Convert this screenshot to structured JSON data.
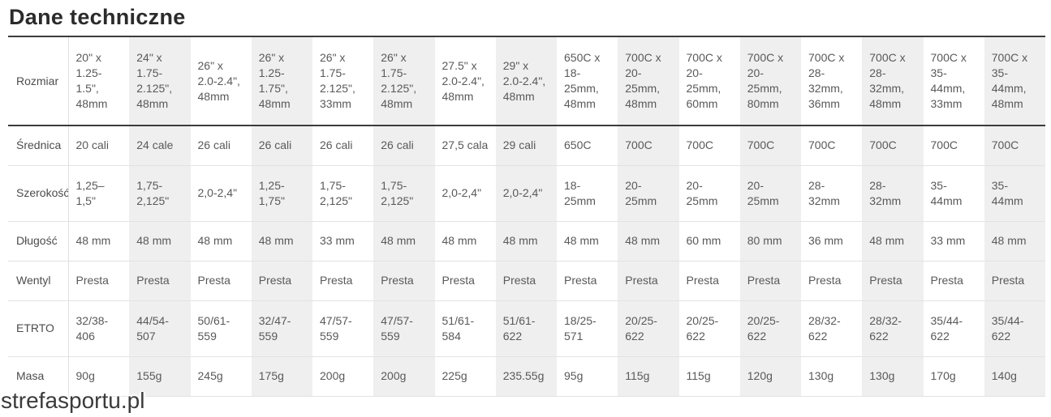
{
  "page": {
    "title": "Dane techniczne",
    "watermark": "strefasportu.pl"
  },
  "colors": {
    "dark_rule": "#3c3c3c",
    "light_rule": "#e3e3e3",
    "striped_column_bg": "#efefef",
    "cell_text": "#595959",
    "title_text": "#2b2b2b"
  },
  "chart_data": {
    "type": "table",
    "title": "Dane techniczne",
    "layout": {
      "striped_columns": "even data columns",
      "label_column_first": true
    },
    "row_labels": [
      "Rozmiar",
      "Średnica",
      "Szerokość",
      "Długość",
      "Wentyl",
      "ETRTO",
      "Masa"
    ],
    "rows": [
      {
        "label": "Rozmiar",
        "values": [
          "20\" x 1.25-1.5\", 48mm",
          "24\" x 1.75-2.125\", 48mm",
          "26\" x 2.0-2.4\", 48mm",
          "26\" x 1.25-1.75\", 48mm",
          "26\" x 1.75-2.125\", 33mm",
          "26\" x 1.75-2.125\", 48mm",
          "27.5\" x 2.0-2.4\", 48mm",
          "29\" x 2.0-2.4\", 48mm",
          "650C x 18-25mm, 48mm",
          "700C x 20-25mm, 48mm",
          "700C x 20-25mm, 60mm",
          "700C x 20-25mm, 80mm",
          "700C x 28-32mm, 36mm",
          "700C x 28-32mm, 48mm",
          "700C x 35-44mm, 33mm",
          "700C x 35-44mm, 48mm"
        ]
      },
      {
        "label": "Średnica",
        "values": [
          "20 cali",
          "24 cale",
          "26 cali",
          "26 cali",
          "26 cali",
          "26 cali",
          "27,5 cala",
          "29 cali",
          "650C",
          "700C",
          "700C",
          "700C",
          "700C",
          "700C",
          "700C",
          "700C"
        ]
      },
      {
        "label": "Szerokość",
        "values": [
          "1,25–1,5\"",
          "1,75-2,125\"",
          "2,0-2,4\"",
          "1,25-1,75\"",
          "1,75-2,125\"",
          "1,75-2,125\"",
          "2,0-2,4\"",
          "2,0-2,4\"",
          "18-25mm",
          "20-25mm",
          "20-25mm",
          "20-25mm",
          "28-32mm",
          "28-32mm",
          "35-44mm",
          "35-44mm"
        ]
      },
      {
        "label": "Długość",
        "values": [
          "48 mm",
          "48 mm",
          "48 mm",
          "48 mm",
          "33 mm",
          "48 mm",
          "48 mm",
          "48 mm",
          "48 mm",
          "48 mm",
          "60 mm",
          "80 mm",
          "36 mm",
          "48 mm",
          "33 mm",
          "48 mm"
        ]
      },
      {
        "label": "Wentyl",
        "values": [
          "Presta",
          "Presta",
          "Presta",
          "Presta",
          "Presta",
          "Presta",
          "Presta",
          "Presta",
          "Presta",
          "Presta",
          "Presta",
          "Presta",
          "Presta",
          "Presta",
          "Presta",
          "Presta"
        ]
      },
      {
        "label": "ETRTO",
        "values": [
          "32/38-406",
          "44/54-507",
          "50/61-559",
          "32/47-559",
          "47/57-559",
          "47/57-559",
          "51/61-584",
          "51/61-622",
          "18/25-571",
          "20/25-622",
          "20/25-622",
          "20/25-622",
          "28/32-622",
          "28/32-622",
          "35/44-622",
          "35/44-622"
        ]
      },
      {
        "label": "Masa",
        "values": [
          "90g",
          "155g",
          "245g",
          "175g",
          "200g",
          "200g",
          "225g",
          "235.55g",
          "95g",
          "115g",
          "115g",
          "120g",
          "130g",
          "130g",
          "170g",
          "140g"
        ]
      }
    ]
  }
}
